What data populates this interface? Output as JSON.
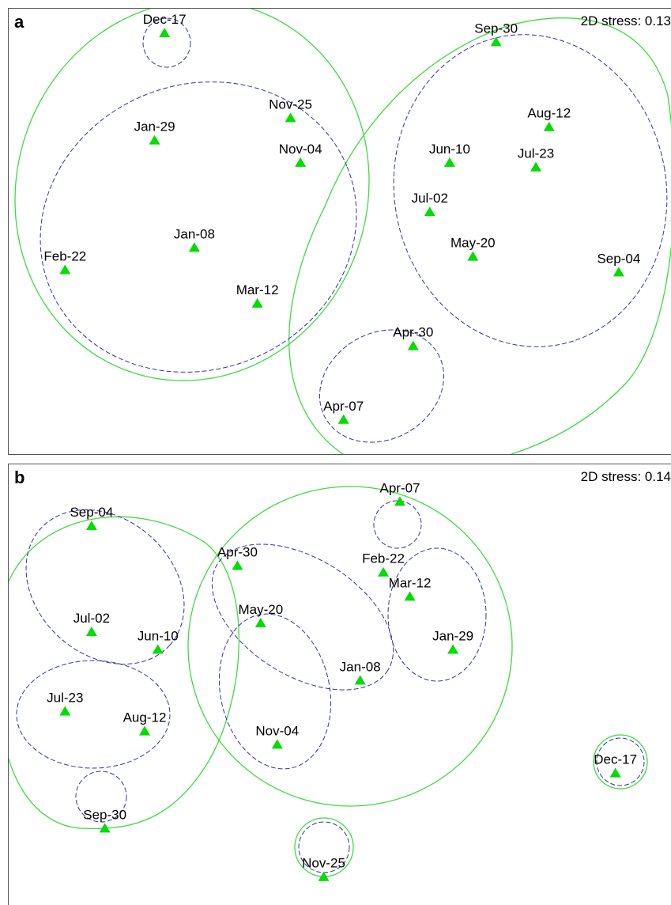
{
  "colors": {
    "marker": "#00dd00",
    "outer_contour": "#3ddc3d",
    "inner_contour": "#3333aa"
  },
  "chart_data": [
    {
      "type": "scatter",
      "panel": "a",
      "annotation": "2D stress: 0.13",
      "points": [
        {
          "label": "Dec-17",
          "x": 0.235,
          "y": 0.945
        },
        {
          "label": "Sep-30",
          "x": 0.735,
          "y": 0.925
        },
        {
          "label": "Nov-25",
          "x": 0.425,
          "y": 0.755
        },
        {
          "label": "Aug-12",
          "x": 0.815,
          "y": 0.735
        },
        {
          "label": "Jan-29",
          "x": 0.22,
          "y": 0.705
        },
        {
          "label": "Nov-04",
          "x": 0.44,
          "y": 0.655
        },
        {
          "label": "Jun-10",
          "x": 0.665,
          "y": 0.655
        },
        {
          "label": "Jul-23",
          "x": 0.795,
          "y": 0.645
        },
        {
          "label": "Jul-02",
          "x": 0.635,
          "y": 0.545
        },
        {
          "label": "Jan-08",
          "x": 0.28,
          "y": 0.465
        },
        {
          "label": "May-20",
          "x": 0.7,
          "y": 0.445
        },
        {
          "label": "Feb-22",
          "x": 0.085,
          "y": 0.415
        },
        {
          "label": "Sep-04",
          "x": 0.92,
          "y": 0.41
        },
        {
          "label": "Mar-12",
          "x": 0.375,
          "y": 0.34
        },
        {
          "label": "Apr-30",
          "x": 0.61,
          "y": 0.245
        },
        {
          "label": "Apr-07",
          "x": 0.505,
          "y": 0.08
        }
      ]
    },
    {
      "type": "scatter",
      "panel": "b",
      "annotation": "2D stress: 0.14",
      "points": [
        {
          "label": "Apr-07",
          "x": 0.59,
          "y": 0.915
        },
        {
          "label": "Sep-04",
          "x": 0.125,
          "y": 0.86
        },
        {
          "label": "Apr-30",
          "x": 0.345,
          "y": 0.77
        },
        {
          "label": "Feb-22",
          "x": 0.565,
          "y": 0.755
        },
        {
          "label": "Mar-12",
          "x": 0.605,
          "y": 0.7
        },
        {
          "label": "May-20",
          "x": 0.38,
          "y": 0.64
        },
        {
          "label": "Jul-02",
          "x": 0.125,
          "y": 0.62
        },
        {
          "label": "Jun-10",
          "x": 0.225,
          "y": 0.58
        },
        {
          "label": "Jan-29",
          "x": 0.67,
          "y": 0.58
        },
        {
          "label": "Jan-08",
          "x": 0.53,
          "y": 0.51
        },
        {
          "label": "Jul-23",
          "x": 0.085,
          "y": 0.44
        },
        {
          "label": "Aug-12",
          "x": 0.205,
          "y": 0.395
        },
        {
          "label": "Nov-04",
          "x": 0.405,
          "y": 0.365
        },
        {
          "label": "Dec-17",
          "x": 0.915,
          "y": 0.3
        },
        {
          "label": "Sep-30",
          "x": 0.145,
          "y": 0.175
        },
        {
          "label": "Nov-25",
          "x": 0.475,
          "y": 0.065
        }
      ]
    }
  ]
}
